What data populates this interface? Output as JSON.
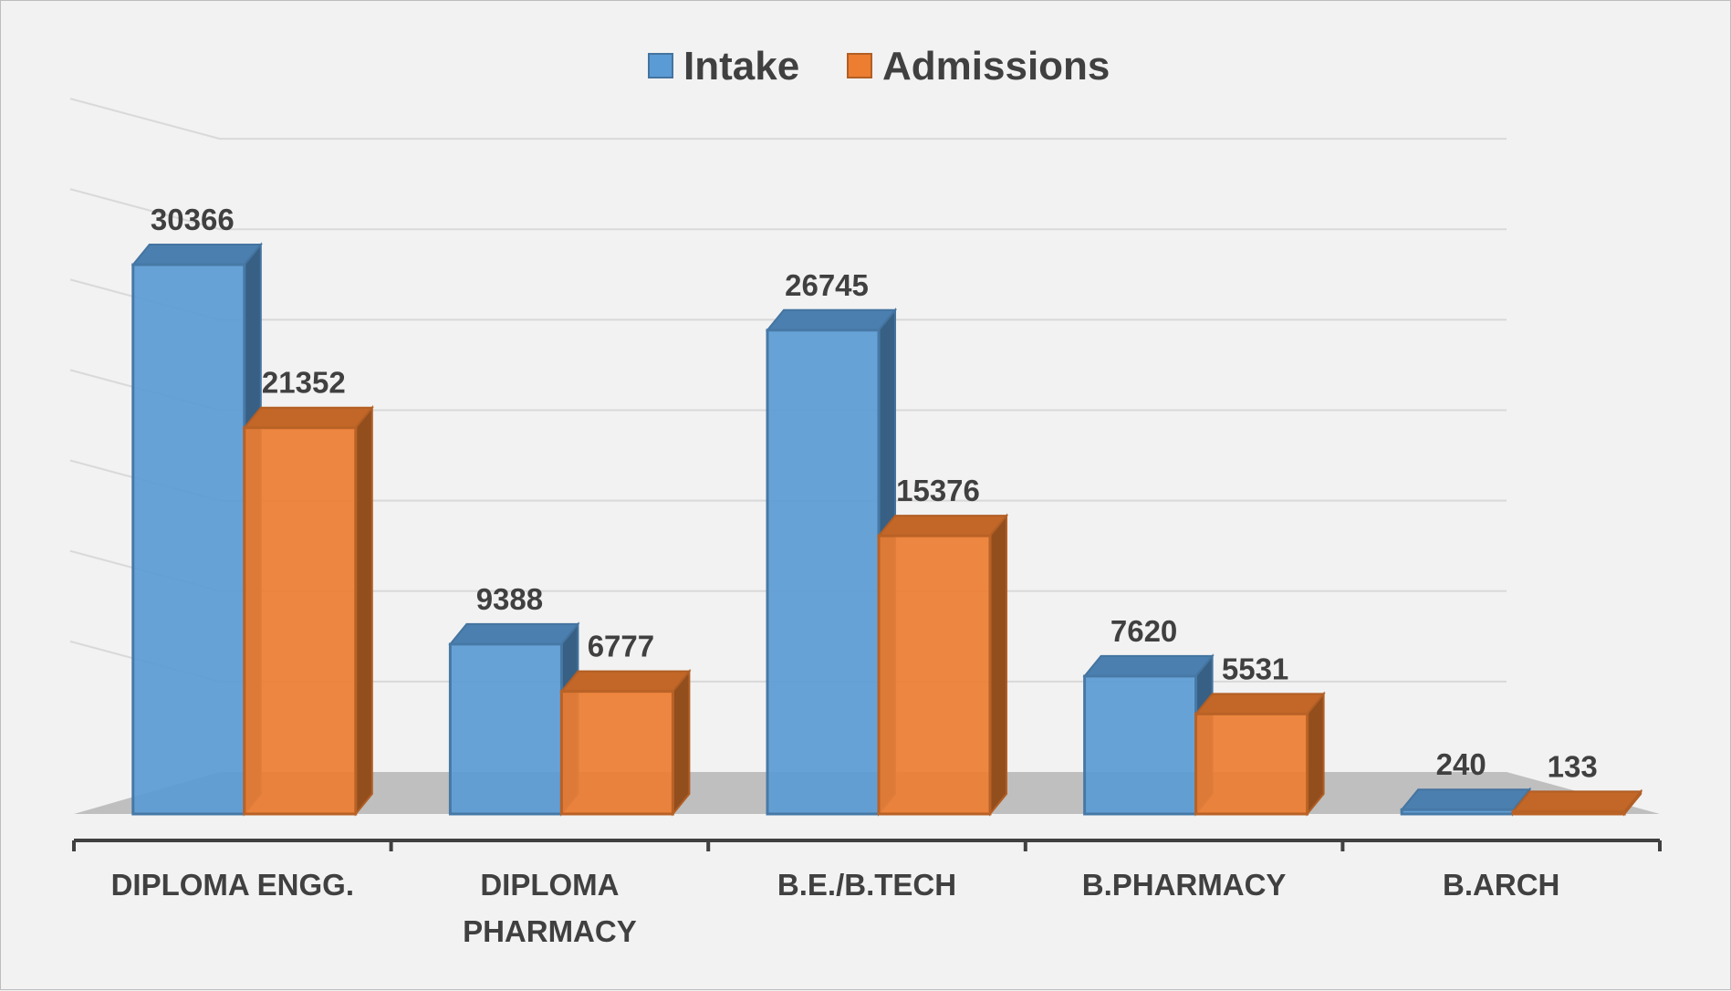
{
  "chart_data": {
    "type": "bar",
    "title": "",
    "xlabel": "",
    "ylabel": "",
    "ylim": [
      0,
      35000
    ],
    "grid": true,
    "legend_position": "top",
    "categories": [
      [
        "DIPLOMA ENGG."
      ],
      [
        "DIPLOMA",
        "PHARMACY"
      ],
      [
        "B.E./B.TECH"
      ],
      [
        "B.PHARMACY"
      ],
      [
        "B.ARCH"
      ]
    ],
    "series": [
      {
        "name": "Intake",
        "color": "#5b9bd5",
        "values": [
          30366,
          9388,
          26745,
          7620,
          240
        ]
      },
      {
        "name": "Admissions",
        "color": "#ed7d31",
        "values": [
          21352,
          6777,
          15376,
          5531,
          133
        ]
      }
    ]
  }
}
